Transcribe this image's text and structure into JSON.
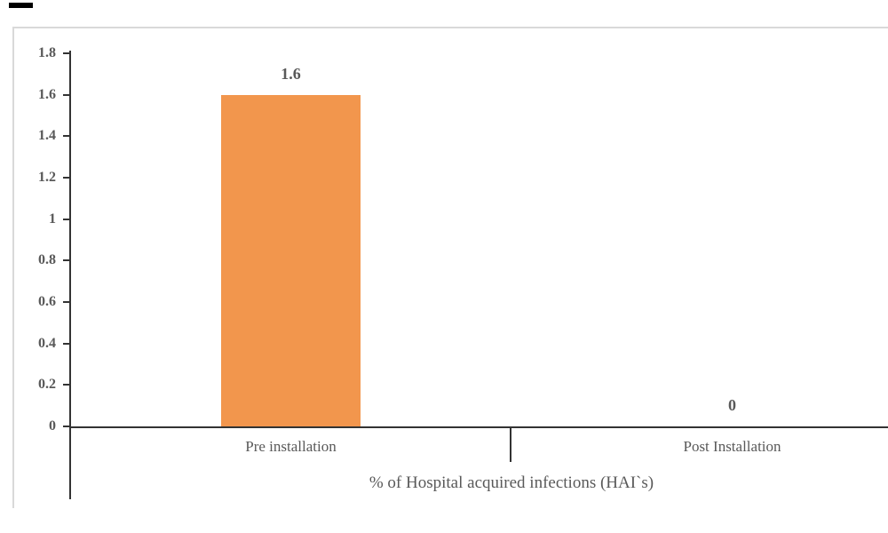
{
  "chart_data": {
    "type": "bar",
    "categories": [
      "Pre installation",
      "Post Installation"
    ],
    "values": [
      1.6,
      0
    ],
    "data_labels": [
      "1.6",
      "0"
    ],
    "title": "",
    "xlabel": "% of Hospital acquired infections (HAI`s)",
    "ylabel": "",
    "ylim": [
      0,
      1.8
    ],
    "ytick_values": [
      0,
      0.2,
      0.4,
      0.6,
      0.8,
      1,
      1.2,
      1.4,
      1.6,
      1.8
    ],
    "ytick_labels": [
      "0",
      "0.2",
      "0.4",
      "0.6",
      "0.8",
      "1",
      "1.2",
      "1.4",
      "1.6",
      "1.8"
    ],
    "grid": "off",
    "legend": "none",
    "colors": {
      "bar_fill": "#F2964D",
      "axis_line": "#333333",
      "chart_border": "#D9D9D9",
      "text": "#595959",
      "redaction_mark": "#000000"
    }
  }
}
